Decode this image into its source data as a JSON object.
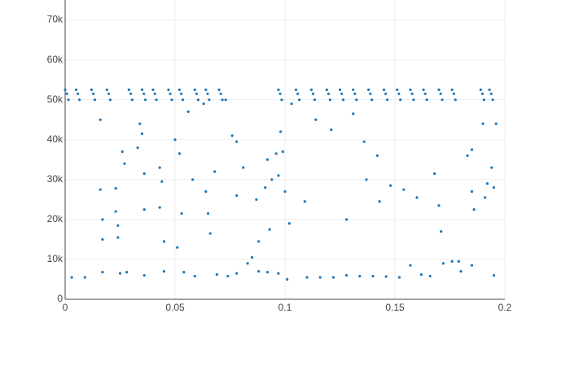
{
  "chart_data": {
    "type": "scatter",
    "color": "#1f77b4",
    "grid": true,
    "xlim": [
      0,
      0.2
    ],
    "xticks": [
      0,
      0.05,
      0.1,
      0.15,
      0.2
    ],
    "ylim": [
      0,
      75000
    ],
    "yticks": [
      0,
      {
        "value": 10000,
        "label": "10k"
      },
      {
        "value": 20000,
        "label": "20k"
      },
      {
        "value": 30000,
        "label": "30k"
      },
      {
        "value": 40000,
        "label": "40k"
      },
      {
        "value": 50000,
        "label": "50k"
      },
      {
        "value": 60000,
        "label": "60k"
      },
      {
        "value": 70000,
        "label": "70k"
      }
    ],
    "x": [
      0,
      0.0008,
      0.0015,
      0.005,
      0.0058,
      0.0065,
      0.012,
      0.0128,
      0.0135,
      0.019,
      0.0198,
      0.0205,
      0.029,
      0.0298,
      0.0305,
      0.035,
      0.0358,
      0.0365,
      0.04,
      0.0408,
      0.0415,
      0.047,
      0.0478,
      0.0485,
      0.052,
      0.0528,
      0.0535,
      0.059,
      0.0598,
      0.0605,
      0.064,
      0.0648,
      0.0655,
      0.07,
      0.0708,
      0.0715,
      0.097,
      0.0978,
      0.0985,
      0.105,
      0.1058,
      0.1065,
      0.112,
      0.1128,
      0.1135,
      0.119,
      0.1198,
      0.1205,
      0.125,
      0.1258,
      0.1265,
      0.131,
      0.1318,
      0.1325,
      0.138,
      0.1388,
      0.1395,
      0.145,
      0.1458,
      0.1465,
      0.151,
      0.1518,
      0.1525,
      0.157,
      0.1578,
      0.1585,
      0.163,
      0.1638,
      0.1645,
      0.17,
      0.1708,
      0.1715,
      0.176,
      0.1768,
      0.1775,
      0.189,
      0.1898,
      0.1905,
      0.193,
      0.1938,
      0.1945,
      0.003,
      0.009,
      0.017,
      0.025,
      0.028,
      0.036,
      0.045,
      0.054,
      0.059,
      0.069,
      0.074,
      0.078,
      0.088,
      0.092,
      0.097,
      0.101,
      0.11,
      0.116,
      0.122,
      0.128,
      0.134,
      0.14,
      0.146,
      0.152,
      0.157,
      0.162,
      0.166,
      0.185,
      0.195,
      0.016,
      0.016,
      0.017,
      0.017,
      0.023,
      0.023,
      0.024,
      0.024,
      0.026,
      0.027,
      0.033,
      0.034,
      0.035,
      0.036,
      0.036,
      0.043,
      0.043,
      0.044,
      0.045,
      0.05,
      0.051,
      0.052,
      0.053,
      0.056,
      0.058,
      0.063,
      0.064,
      0.065,
      0.066,
      0.068,
      0.073,
      0.076,
      0.078,
      0.078,
      0.081,
      0.083,
      0.085,
      0.087,
      0.088,
      0.091,
      0.092,
      0.093,
      0.094,
      0.096,
      0.097,
      0.098,
      0.099,
      0.1,
      0.102,
      0.103,
      0.109,
      0.114,
      0.121,
      0.128,
      0.131,
      0.136,
      0.137,
      0.142,
      0.143,
      0.148,
      0.154,
      0.16,
      0.168,
      0.17,
      0.171,
      0.172,
      0.176,
      0.179,
      0.18,
      0.183,
      0.185,
      0.185,
      0.186,
      0.19,
      0.191,
      0.192,
      0.194,
      0.195,
      0.196
    ],
    "y": [
      52500,
      51500,
      50000,
      52500,
      51500,
      50000,
      52500,
      51500,
      50000,
      52500,
      51500,
      50000,
      52500,
      51500,
      50000,
      52500,
      51500,
      50000,
      52500,
      51500,
      50000,
      52500,
      51500,
      50000,
      52500,
      51500,
      50000,
      52500,
      51500,
      50000,
      52500,
      51500,
      50000,
      52500,
      51500,
      50000,
      52500,
      51500,
      50000,
      52500,
      51500,
      50000,
      52500,
      51500,
      50000,
      52500,
      51500,
      50000,
      52500,
      51500,
      50000,
      52500,
      51500,
      50000,
      52500,
      51500,
      50000,
      52500,
      51500,
      50000,
      52500,
      51500,
      50000,
      52500,
      51500,
      50000,
      52500,
      51500,
      50000,
      52500,
      51500,
      50000,
      52500,
      51500,
      50000,
      52500,
      51500,
      50000,
      52500,
      51500,
      50000,
      5500,
      5500,
      6800,
      6500,
      6800,
      6000,
      7000,
      6800,
      5800,
      6200,
      5800,
      6500,
      7000,
      6800,
      6500,
      5000,
      5500,
      5500,
      5500,
      6000,
      5800,
      5800,
      5700,
      5500,
      8500,
      6200,
      5800,
      8500,
      6000,
      45000,
      27500,
      15000,
      20000,
      27800,
      22000,
      18500,
      15500,
      37000,
      34000,
      38000,
      44000,
      41500,
      31500,
      22500,
      33000,
      23000,
      29500,
      14500,
      40000,
      13000,
      36500,
      21500,
      47000,
      30000,
      49000,
      27000,
      21500,
      16500,
      32000,
      50000,
      41000,
      39500,
      26000,
      33000,
      9000,
      10500,
      25000,
      14500,
      28000,
      35000,
      17500,
      30000,
      36500,
      31000,
      42000,
      37000,
      27000,
      19000,
      49000,
      24500,
      45000,
      42500,
      20000,
      46500,
      39500,
      30000,
      36000,
      24500,
      28500,
      27500,
      25500,
      31500,
      23500,
      17000,
      9000,
      9500,
      9500,
      7000,
      36000,
      37500,
      27000,
      22500,
      44000,
      25500,
      29000,
      33000,
      28000,
      44000
    ]
  }
}
